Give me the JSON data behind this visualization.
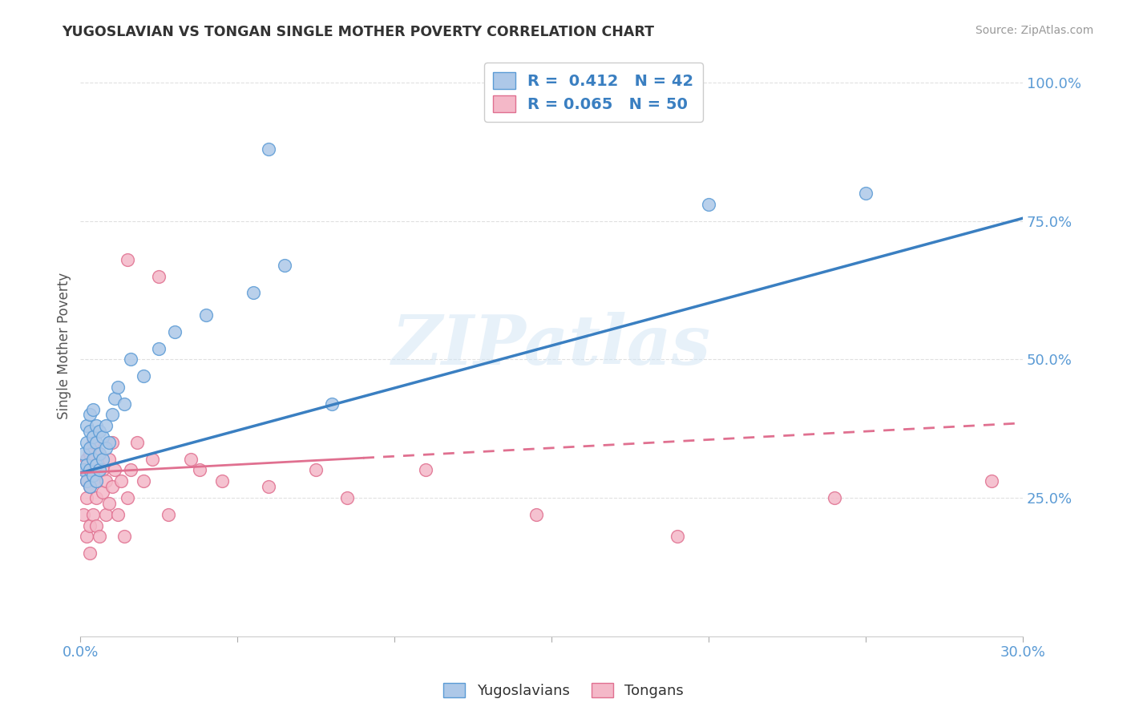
{
  "title": "YUGOSLAVIAN VS TONGAN SINGLE MOTHER POVERTY CORRELATION CHART",
  "source": "Source: ZipAtlas.com",
  "ylabel": "Single Mother Poverty",
  "right_yticks": [
    0.25,
    0.5,
    0.75,
    1.0
  ],
  "right_yticklabels": [
    "25.0%",
    "50.0%",
    "75.0%",
    "100.0%"
  ],
  "xlim": [
    0.0,
    0.3
  ],
  "ylim": [
    0.0,
    1.05
  ],
  "blue_R": 0.412,
  "blue_N": 42,
  "pink_R": 0.065,
  "pink_N": 50,
  "blue_color": "#adc8e8",
  "blue_edge_color": "#5b9bd5",
  "pink_color": "#f4b8c8",
  "pink_edge_color": "#e07090",
  "blue_line_color": "#3a7fc1",
  "pink_line_color": "#e07090",
  "watermark": "ZIPatlas",
  "background_color": "#ffffff",
  "grid_color": "#e0e0e0",
  "blue_x": [
    0.001,
    0.001,
    0.002,
    0.002,
    0.002,
    0.002,
    0.003,
    0.003,
    0.003,
    0.003,
    0.003,
    0.004,
    0.004,
    0.004,
    0.004,
    0.005,
    0.005,
    0.005,
    0.005,
    0.006,
    0.006,
    0.006,
    0.007,
    0.007,
    0.008,
    0.008,
    0.009,
    0.01,
    0.011,
    0.012,
    0.014,
    0.016,
    0.02,
    0.025,
    0.03,
    0.04,
    0.055,
    0.065,
    0.08,
    0.2,
    0.25,
    0.06
  ],
  "blue_y": [
    0.3,
    0.33,
    0.28,
    0.31,
    0.35,
    0.38,
    0.27,
    0.3,
    0.34,
    0.37,
    0.4,
    0.29,
    0.32,
    0.36,
    0.41,
    0.28,
    0.31,
    0.35,
    0.38,
    0.3,
    0.33,
    0.37,
    0.32,
    0.36,
    0.34,
    0.38,
    0.35,
    0.4,
    0.43,
    0.45,
    0.42,
    0.5,
    0.47,
    0.52,
    0.55,
    0.58,
    0.62,
    0.67,
    0.42,
    0.78,
    0.8,
    0.88
  ],
  "pink_x": [
    0.001,
    0.001,
    0.002,
    0.002,
    0.002,
    0.002,
    0.003,
    0.003,
    0.003,
    0.003,
    0.004,
    0.004,
    0.004,
    0.005,
    0.005,
    0.005,
    0.006,
    0.006,
    0.006,
    0.007,
    0.007,
    0.008,
    0.008,
    0.009,
    0.009,
    0.01,
    0.01,
    0.011,
    0.012,
    0.013,
    0.014,
    0.015,
    0.016,
    0.018,
    0.02,
    0.023,
    0.028,
    0.015,
    0.025,
    0.035,
    0.038,
    0.045,
    0.06,
    0.075,
    0.085,
    0.11,
    0.145,
    0.19,
    0.24,
    0.29
  ],
  "pink_y": [
    0.3,
    0.22,
    0.25,
    0.18,
    0.28,
    0.32,
    0.2,
    0.27,
    0.33,
    0.15,
    0.22,
    0.3,
    0.35,
    0.25,
    0.28,
    0.2,
    0.3,
    0.18,
    0.33,
    0.26,
    0.3,
    0.22,
    0.28,
    0.24,
    0.32,
    0.27,
    0.35,
    0.3,
    0.22,
    0.28,
    0.18,
    0.25,
    0.3,
    0.35,
    0.28,
    0.32,
    0.22,
    0.68,
    0.65,
    0.32,
    0.3,
    0.28,
    0.27,
    0.3,
    0.25,
    0.3,
    0.22,
    0.18,
    0.25,
    0.28
  ],
  "blue_line_x0": 0.0,
  "blue_line_y0": 0.295,
  "blue_line_x1": 0.3,
  "blue_line_y1": 0.755,
  "pink_line_x0": 0.0,
  "pink_line_y0": 0.295,
  "pink_line_x1": 0.3,
  "pink_line_y1": 0.385
}
